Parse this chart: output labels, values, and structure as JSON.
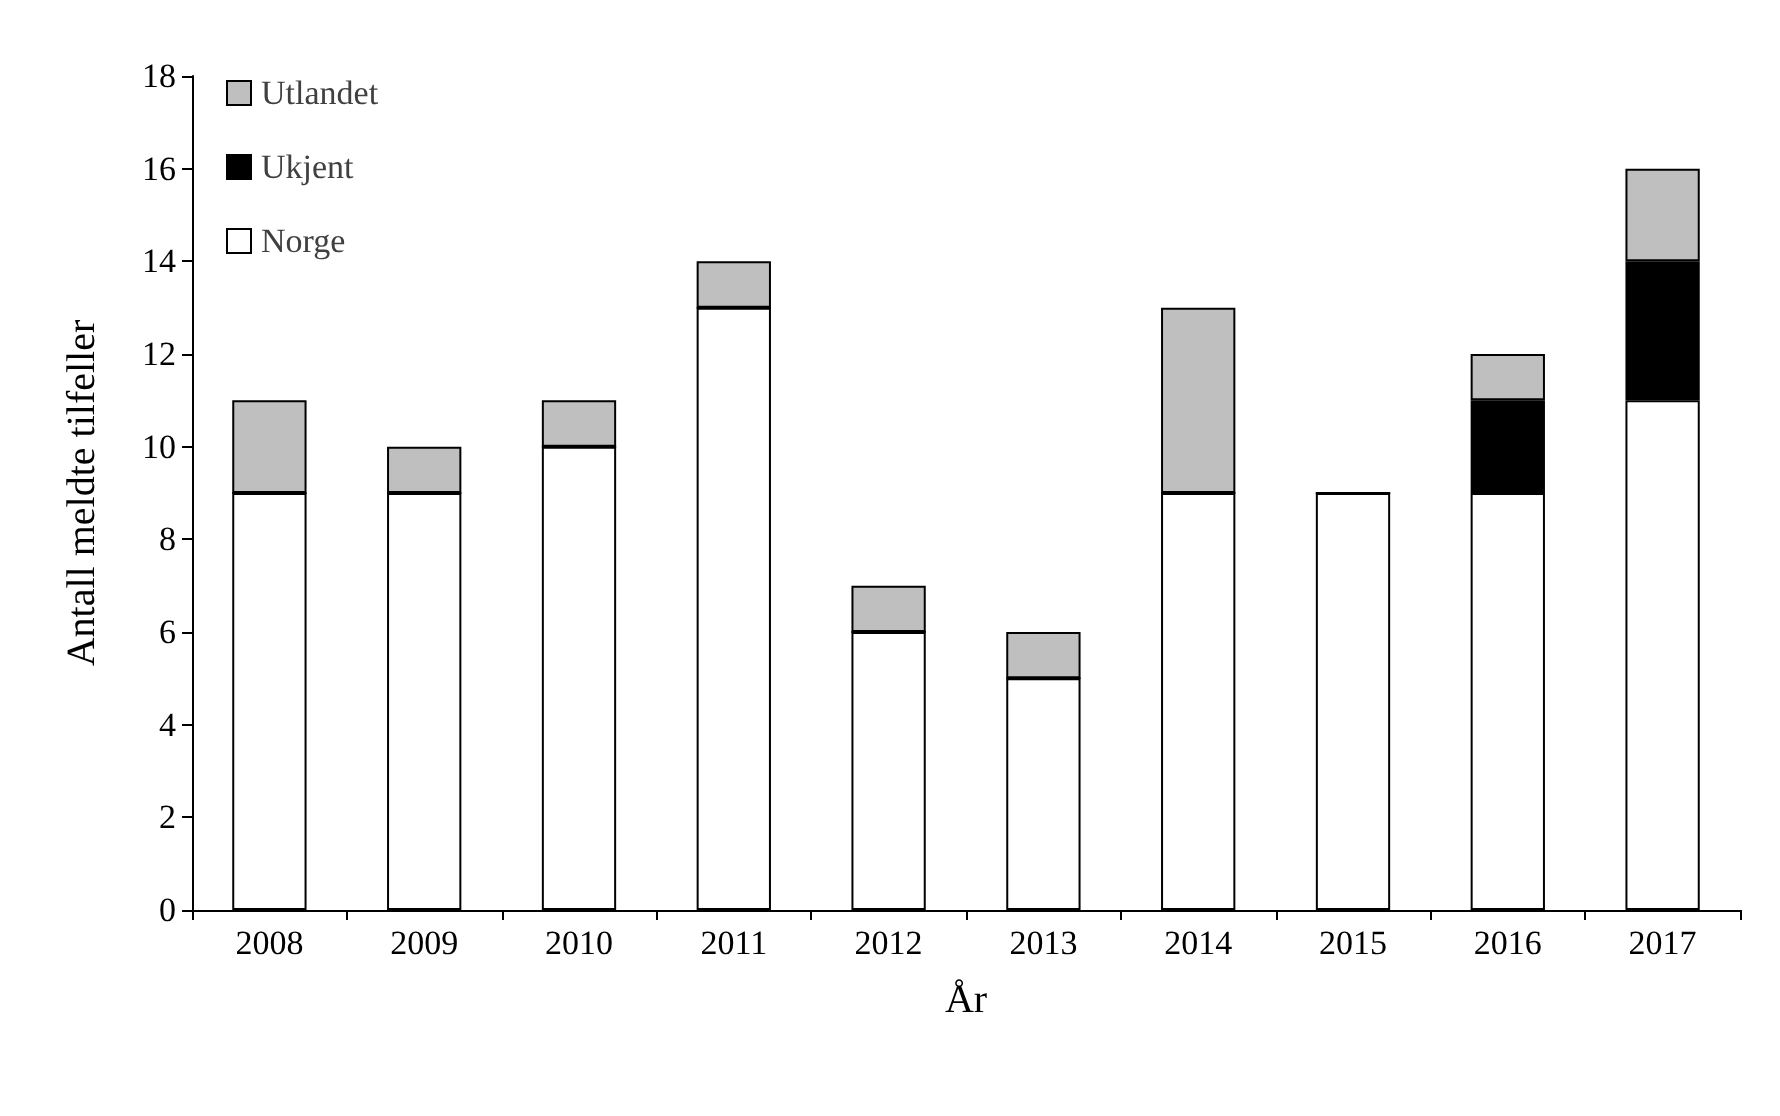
{
  "chart_data": {
    "type": "bar",
    "stacked": true,
    "xlabel": "År",
    "ylabel": "Antall meldte tilfeller",
    "categories": [
      "2008",
      "2009",
      "2010",
      "2011",
      "2012",
      "2013",
      "2014",
      "2015",
      "2016",
      "2017"
    ],
    "series": [
      {
        "name": "Norge",
        "color": "#ffffff",
        "values": [
          9,
          9,
          10,
          13,
          6,
          5,
          9,
          9,
          9,
          11
        ]
      },
      {
        "name": "Ukjent",
        "color": "#000000",
        "values": [
          0,
          0,
          0,
          0,
          0,
          0,
          0,
          0,
          2,
          3
        ]
      },
      {
        "name": "Utlandet",
        "color": "#bfbfbf",
        "values": [
          2,
          1,
          1,
          1,
          1,
          1,
          4,
          0,
          1,
          2
        ]
      }
    ],
    "ylim": [
      0,
      18
    ],
    "yticks": [
      0,
      2,
      4,
      6,
      8,
      10,
      12,
      14,
      16,
      18
    ],
    "grid": false,
    "legend": "top left"
  }
}
